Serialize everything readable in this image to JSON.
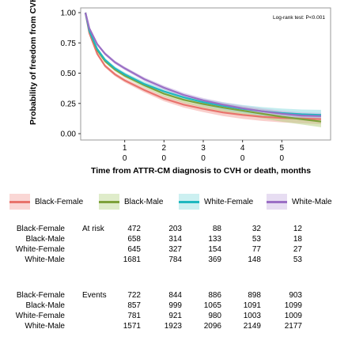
{
  "chart_data": {
    "type": "line",
    "subtype": "kaplan-meier",
    "ylabel": "Probability of freedom from CVH or death",
    "xlabel": "Time from ATTR-CM diagnosis to CVH or death, months",
    "annotation": "Log-rank test: P<0.001",
    "y_ticks": [
      "1.00",
      "0.75",
      "0.50",
      "0.25",
      "0.00"
    ],
    "ylim": [
      0,
      1
    ],
    "xlim": [
      0,
      6
    ],
    "x_ticks": [
      "1",
      "2",
      "3",
      "4",
      "5"
    ],
    "x_ticks_second_row": [
      "0",
      "0",
      "0",
      "0",
      "0"
    ],
    "grid": false,
    "series": [
      {
        "name": "Black-Female",
        "color": "#e8736c",
        "band_color": "#f4a7a2",
        "x": [
          0,
          0.1,
          0.3,
          0.5,
          0.75,
          1,
          1.5,
          2,
          2.5,
          3,
          3.5,
          4,
          4.5,
          5,
          5.5,
          6
        ],
        "y": [
          1.0,
          0.83,
          0.66,
          0.56,
          0.49,
          0.44,
          0.36,
          0.29,
          0.24,
          0.205,
          0.175,
          0.155,
          0.14,
          0.13,
          0.125,
          0.12
        ]
      },
      {
        "name": "Black-Male",
        "color": "#7da13a",
        "band_color": "#b9d48a",
        "x": [
          0,
          0.1,
          0.3,
          0.5,
          0.75,
          1,
          1.5,
          2,
          2.5,
          3,
          3.5,
          4,
          4.5,
          5,
          5.5,
          6
        ],
        "y": [
          1.0,
          0.85,
          0.69,
          0.6,
          0.53,
          0.48,
          0.4,
          0.33,
          0.28,
          0.245,
          0.215,
          0.19,
          0.165,
          0.14,
          0.12,
          0.1
        ]
      },
      {
        "name": "White-Female",
        "color": "#1fb8bf",
        "band_color": "#8fdde0",
        "x": [
          0,
          0.1,
          0.3,
          0.5,
          0.75,
          1,
          1.5,
          2,
          2.5,
          3,
          3.5,
          4,
          4.5,
          5,
          5.5,
          6
        ],
        "y": [
          1.0,
          0.85,
          0.7,
          0.61,
          0.54,
          0.49,
          0.41,
          0.35,
          0.3,
          0.26,
          0.23,
          0.205,
          0.185,
          0.17,
          0.16,
          0.155
        ]
      },
      {
        "name": "White-Male",
        "color": "#9b6fc5",
        "band_color": "#c9b3e2",
        "x": [
          0,
          0.1,
          0.3,
          0.5,
          0.75,
          1,
          1.5,
          2,
          2.5,
          3,
          3.5,
          4,
          4.5,
          5,
          5.5,
          6
        ],
        "y": [
          1.0,
          0.87,
          0.74,
          0.66,
          0.59,
          0.54,
          0.45,
          0.38,
          0.32,
          0.275,
          0.24,
          0.21,
          0.185,
          0.165,
          0.15,
          0.145
        ]
      }
    ]
  },
  "legend": [
    {
      "label": "Black-Female"
    },
    {
      "label": "Black-Male"
    },
    {
      "label": "White-Female"
    },
    {
      "label": "White-Male"
    }
  ],
  "at_risk": {
    "title": "At risk",
    "rows": [
      {
        "group": "Black-Female",
        "values": [
          "472",
          "203",
          "88",
          "32",
          "12"
        ]
      },
      {
        "group": "Black-Male",
        "values": [
          "658",
          "314",
          "133",
          "53",
          "18"
        ]
      },
      {
        "group": "White-Female",
        "values": [
          "645",
          "327",
          "154",
          "77",
          "27"
        ]
      },
      {
        "group": "White-Male",
        "values": [
          "1681",
          "784",
          "369",
          "148",
          "53"
        ]
      }
    ]
  },
  "events": {
    "title": "Events",
    "rows": [
      {
        "group": "Black-Female",
        "values": [
          "722",
          "844",
          "886",
          "898",
          "903"
        ]
      },
      {
        "group": "Black-Male",
        "values": [
          "857",
          "999",
          "1065",
          "1091",
          "1099"
        ]
      },
      {
        "group": "White-Female",
        "values": [
          "781",
          "921",
          "980",
          "1003",
          "1009"
        ]
      },
      {
        "group": "White-Male",
        "values": [
          "1571",
          "1923",
          "2096",
          "2149",
          "2177"
        ]
      }
    ]
  }
}
